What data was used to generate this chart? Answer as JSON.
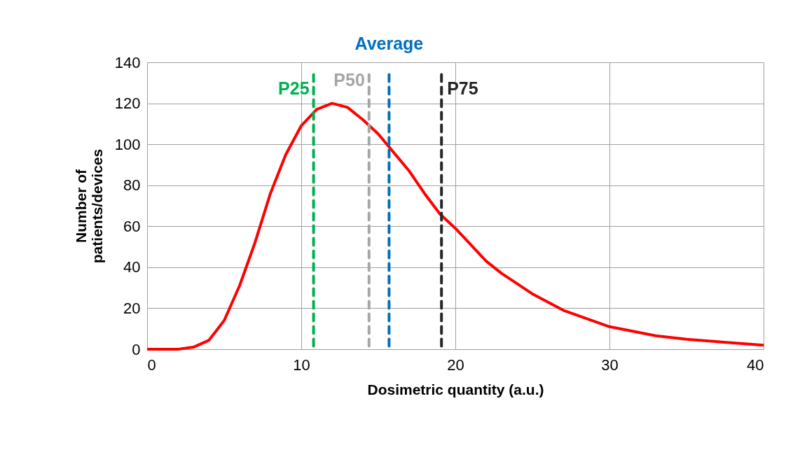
{
  "chart_data": {
    "type": "line",
    "xlabel": "Dosimetric quantity (a.u.)",
    "ylabel": "Number of patients/devices",
    "x": [
      0,
      1,
      2,
      3,
      4,
      5,
      6,
      7,
      8,
      9,
      10,
      11,
      12,
      13,
      14,
      15,
      16,
      17,
      18,
      19,
      20,
      22,
      23,
      25,
      27,
      30,
      33,
      35,
      37,
      40
    ],
    "series": [
      {
        "color": "#ff0000",
        "values": [
          0,
          0,
          0,
          1,
          4.3,
          14,
          31,
          52,
          76,
          95,
          109,
          117,
          120,
          118,
          112,
          105,
          96,
          87,
          76,
          66,
          59,
          43,
          37,
          27,
          19,
          11,
          6.6,
          4.9,
          3.7,
          2
        ]
      }
    ],
    "xlim": [
      0,
      40
    ],
    "xticks": [
      0,
      10,
      20,
      30,
      40
    ],
    "ylim": [
      0,
      140
    ],
    "yticks": [
      0,
      20,
      40,
      60,
      80,
      100,
      120,
      140
    ],
    "grid": true,
    "marker": "none",
    "line_style": "solid",
    "ref_lines": [
      {
        "axis": "x",
        "value": 10.8,
        "label": "P25",
        "color": "#00b050",
        "line_style": "dashed"
      },
      {
        "axis": "x",
        "value": 14.4,
        "label": "P50",
        "color": "#a6a6a6",
        "line_style": "dashed"
      },
      {
        "axis": "x",
        "value": 15.7,
        "label": "Average",
        "color": "#0070c0",
        "line_style": "dashed"
      },
      {
        "axis": "x",
        "value": 19.1,
        "label": "P75",
        "color": "#262626",
        "line_style": "dashed"
      }
    ]
  }
}
